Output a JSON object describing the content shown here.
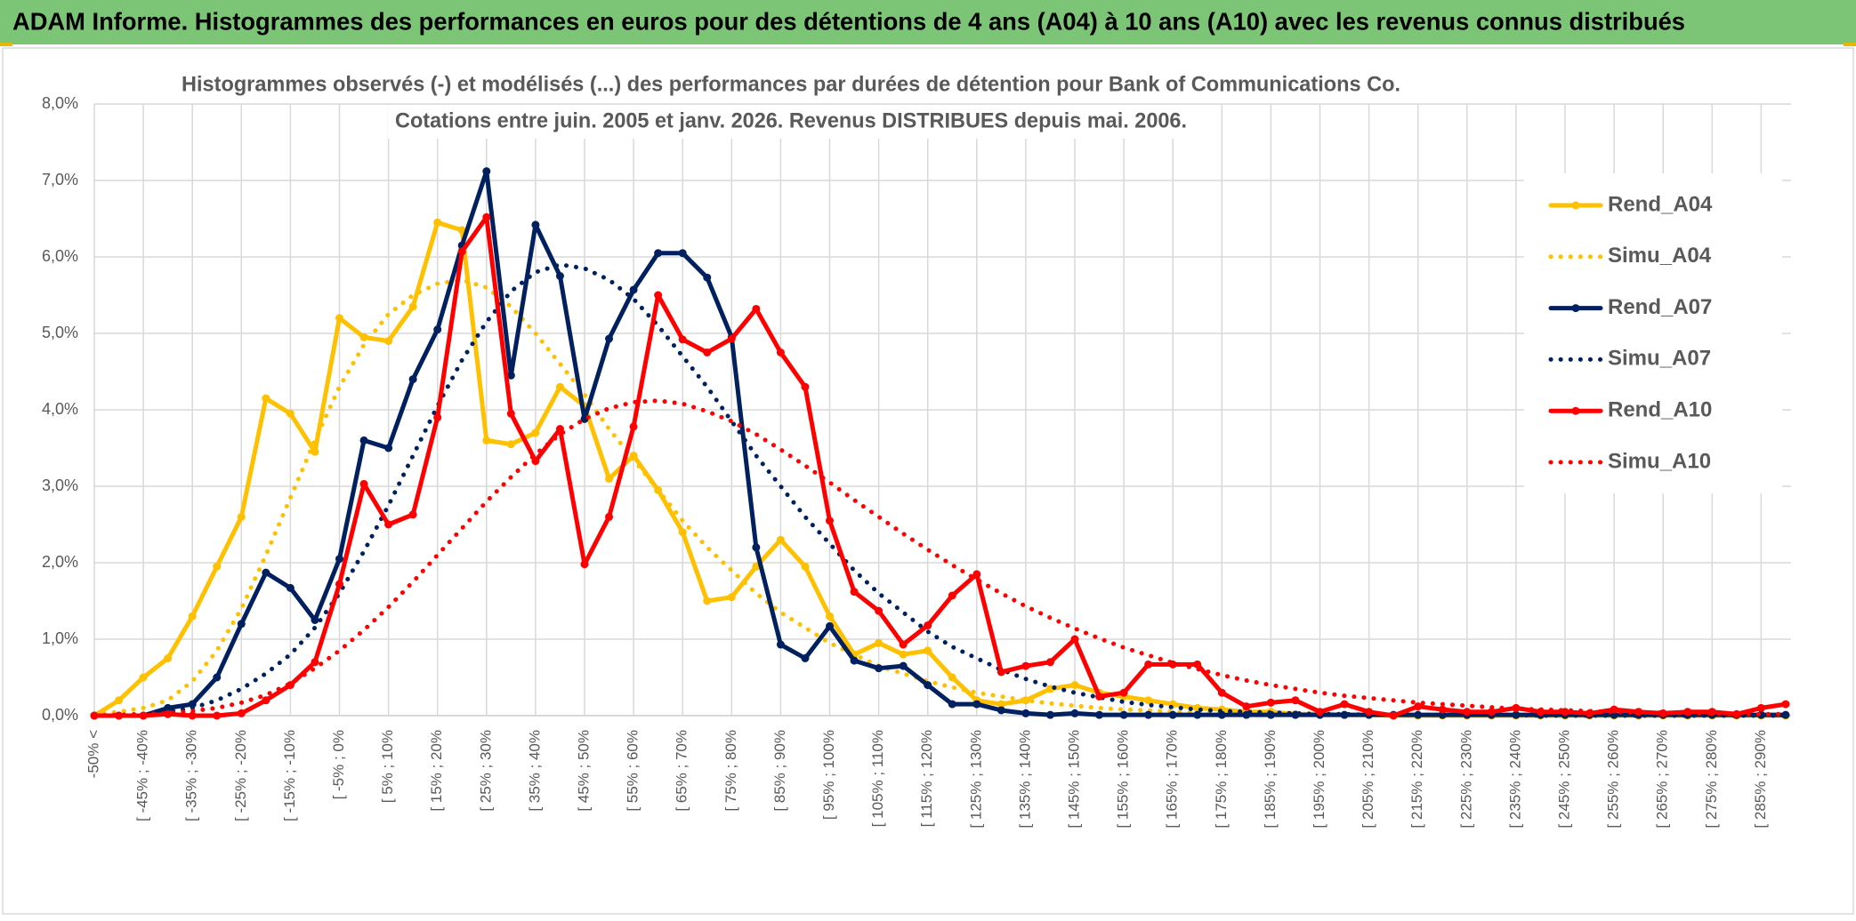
{
  "page_title": "ADAM Informe. Histogrammes des performances en euros pour des détentions de 4 ans (A04) à 10 ans (A10) avec les revenus connus distribués",
  "chart_data": {
    "type": "line",
    "title": "Histogrammes observés (-) et modélisés (...) des performances par durées de détention pour Bank of Communications Co.",
    "subtitle": "Cotations entre juin. 2005 et janv. 2026. Revenus DISTRIBUES depuis mai. 2006.",
    "categories": [
      "-50% <",
      null,
      "[ -45% ; -40%",
      null,
      "[ -35% ; -30%",
      null,
      "[ -25% ; -20%",
      null,
      "[ -15% ; -10%",
      null,
      "[ -5% ; 0%",
      null,
      "[ 5% ; 10%",
      null,
      "[ 15% ; 20%",
      null,
      "[ 25% ; 30%",
      null,
      "[ 35% ; 40%",
      null,
      "[ 45% ; 50%",
      null,
      "[ 55% ; 60%",
      null,
      "[ 65% ; 70%",
      null,
      "[ 75% ; 80%",
      null,
      "[ 85% ; 90%",
      null,
      "[ 95% ; 100%",
      null,
      "[ 105% ; 110%",
      null,
      "[ 115% ; 120%",
      null,
      "[ 125% ; 130%",
      null,
      "[ 135% ; 140%",
      null,
      "[ 145% ; 150%",
      null,
      "[ 155% ; 160%",
      null,
      "[ 165% ; 170%",
      null,
      "[ 175% ; 180%",
      null,
      "[ 185% ; 190%",
      null,
      "[ 195% ; 200%",
      null,
      "[ 205% ; 210%",
      null,
      "[ 215% ; 220%",
      null,
      "[ 225% ; 230%",
      null,
      "[ 235% ; 240%",
      null,
      "[ 245% ; 250%",
      null,
      "[ 255% ; 260%",
      null,
      "[ 265% ; 270%",
      null,
      "[ 275% ; 280%",
      null,
      "[ 285% ; 290%",
      null
    ],
    "ylim": [
      0,
      8
    ],
    "yticks": [
      {
        "value": 0,
        "label": "0,0%"
      },
      {
        "value": 1,
        "label": "1,0%"
      },
      {
        "value": 2,
        "label": "2,0%"
      },
      {
        "value": 3,
        "label": "3,0%"
      },
      {
        "value": 4,
        "label": "4,0%"
      },
      {
        "value": 5,
        "label": "5,0%"
      },
      {
        "value": 6,
        "label": "6,0%"
      },
      {
        "value": 7,
        "label": "7,0%"
      },
      {
        "value": 8,
        "label": "8,0%"
      }
    ],
    "grid": true,
    "legend": "right",
    "series": [
      {
        "name": "Rend_A04",
        "color": "#ffc000",
        "line_style": "solid",
        "markers": true,
        "values": [
          0,
          0.2,
          0.5,
          0.75,
          1.3,
          1.95,
          2.6,
          4.15,
          3.95,
          3.45,
          5.2,
          4.95,
          4.9,
          5.35,
          6.45,
          6.35,
          3.6,
          3.55,
          3.7,
          4.3,
          4.05,
          3.1,
          3.4,
          2.95,
          2.4,
          1.5,
          1.55,
          1.95,
          2.3,
          1.95,
          1.3,
          0.8,
          0.95,
          0.8,
          0.85,
          0.5,
          0.2,
          0.15,
          0.2,
          0.35,
          0.4,
          0.3,
          0.25,
          0.2,
          0.15,
          0.1,
          0.08,
          0.05,
          0.05,
          0.02,
          0.02,
          0.01,
          0.01,
          0,
          0,
          0,
          0,
          0,
          0,
          0,
          0,
          0,
          0,
          0,
          0,
          0,
          0,
          0,
          0,
          0
        ]
      },
      {
        "name": "Simu_A04",
        "color": "#ffc000",
        "line_style": "dotted",
        "markers": false,
        "values": [
          0.02,
          0.05,
          0.1,
          0.2,
          0.45,
          0.85,
          1.4,
          2.1,
          2.85,
          3.6,
          4.3,
          4.85,
          5.25,
          5.5,
          5.65,
          5.7,
          5.6,
          5.35,
          5.0,
          4.6,
          4.2,
          3.75,
          3.35,
          2.95,
          2.55,
          2.2,
          1.9,
          1.6,
          1.35,
          1.15,
          0.95,
          0.8,
          0.65,
          0.55,
          0.45,
          0.37,
          0.3,
          0.25,
          0.2,
          0.16,
          0.13,
          0.1,
          0.08,
          0.07,
          0.05,
          0.04,
          0.03,
          0.03,
          0.02,
          0.02,
          0.01,
          0.01,
          0.01,
          0.01,
          0.01,
          0,
          0,
          0,
          0,
          0,
          0,
          0,
          0,
          0,
          0,
          0,
          0,
          0,
          0,
          0
        ]
      },
      {
        "name": "Rend_A07",
        "color": "#002060",
        "line_style": "solid",
        "markers": true,
        "values": [
          0,
          0,
          0,
          0.1,
          0.15,
          0.5,
          1.2,
          1.87,
          1.67,
          1.25,
          2.05,
          3.6,
          3.5,
          4.4,
          5.05,
          6.15,
          7.12,
          4.45,
          6.42,
          5.75,
          3.88,
          4.93,
          5.57,
          6.05,
          6.05,
          5.73,
          4.95,
          2.2,
          0.93,
          0.75,
          1.17,
          0.72,
          0.62,
          0.65,
          0.4,
          0.15,
          0.15,
          0.07,
          0.03,
          0.01,
          0.03,
          0.01,
          0.01,
          0.01,
          0.01,
          0.01,
          0.01,
          0.01,
          0.01,
          0.01,
          0.01,
          0.01,
          0.01,
          0.01,
          0.01,
          0.01,
          0.01,
          0.01,
          0.01,
          0.01,
          0.01,
          0.01,
          0.01,
          0.01,
          0.01,
          0.01,
          0.01,
          0.01,
          0.01,
          0.01
        ]
      },
      {
        "name": "Simu_A07",
        "color": "#002060",
        "line_style": "dotted",
        "markers": false,
        "values": [
          0,
          0.01,
          0.02,
          0.05,
          0.1,
          0.2,
          0.35,
          0.55,
          0.8,
          1.15,
          1.6,
          2.15,
          2.75,
          3.4,
          4.05,
          4.65,
          5.15,
          5.55,
          5.8,
          5.9,
          5.85,
          5.7,
          5.45,
          5.1,
          4.7,
          4.3,
          3.85,
          3.4,
          3.0,
          2.6,
          2.25,
          1.9,
          1.6,
          1.35,
          1.1,
          0.9,
          0.75,
          0.6,
          0.48,
          0.38,
          0.3,
          0.24,
          0.18,
          0.14,
          0.11,
          0.08,
          0.06,
          0.05,
          0.04,
          0.03,
          0.02,
          0.02,
          0.01,
          0.01,
          0.01,
          0.01,
          0.01,
          0.01,
          0.01,
          0,
          0,
          0,
          0,
          0,
          0,
          0,
          0,
          0,
          0,
          0
        ]
      },
      {
        "name": "Rend_A10",
        "color": "#ff0000",
        "line_style": "solid",
        "markers": true,
        "values": [
          0,
          0,
          0,
          0.02,
          0,
          0,
          0.03,
          0.2,
          0.4,
          0.7,
          1.72,
          3.03,
          2.5,
          2.63,
          3.9,
          6.07,
          6.52,
          3.95,
          3.33,
          3.75,
          1.98,
          2.6,
          3.78,
          5.5,
          4.92,
          4.75,
          4.93,
          5.32,
          4.75,
          4.3,
          2.55,
          1.62,
          1.37,
          0.93,
          1.18,
          1.57,
          1.85,
          0.57,
          0.65,
          0.7,
          1.0,
          0.25,
          0.3,
          0.67,
          0.67,
          0.67,
          0.3,
          0.12,
          0.17,
          0.2,
          0.05,
          0.15,
          0.05,
          0,
          0.12,
          0.08,
          0.05,
          0.05,
          0.1,
          0.05,
          0.05,
          0.03,
          0.08,
          0.05,
          0.03,
          0.05,
          0.05,
          0.02,
          0.1,
          0.15
        ]
      },
      {
        "name": "Simu_A10",
        "color": "#ff0000",
        "line_style": "dotted",
        "markers": false,
        "values": [
          0,
          0.01,
          0.02,
          0.03,
          0.06,
          0.1,
          0.17,
          0.27,
          0.42,
          0.62,
          0.85,
          1.12,
          1.42,
          1.75,
          2.1,
          2.45,
          2.8,
          3.12,
          3.42,
          3.68,
          3.88,
          4.02,
          4.1,
          4.12,
          4.08,
          3.98,
          3.85,
          3.68,
          3.48,
          3.27,
          3.05,
          2.82,
          2.6,
          2.38,
          2.17,
          1.97,
          1.78,
          1.6,
          1.43,
          1.28,
          1.14,
          1.01,
          0.89,
          0.79,
          0.69,
          0.61,
          0.53,
          0.46,
          0.4,
          0.35,
          0.3,
          0.26,
          0.23,
          0.2,
          0.17,
          0.15,
          0.13,
          0.11,
          0.09,
          0.08,
          0.07,
          0.06,
          0.05,
          0.04,
          0.04,
          0.03,
          0.03,
          0.02,
          0.02,
          0.02
        ]
      }
    ]
  }
}
